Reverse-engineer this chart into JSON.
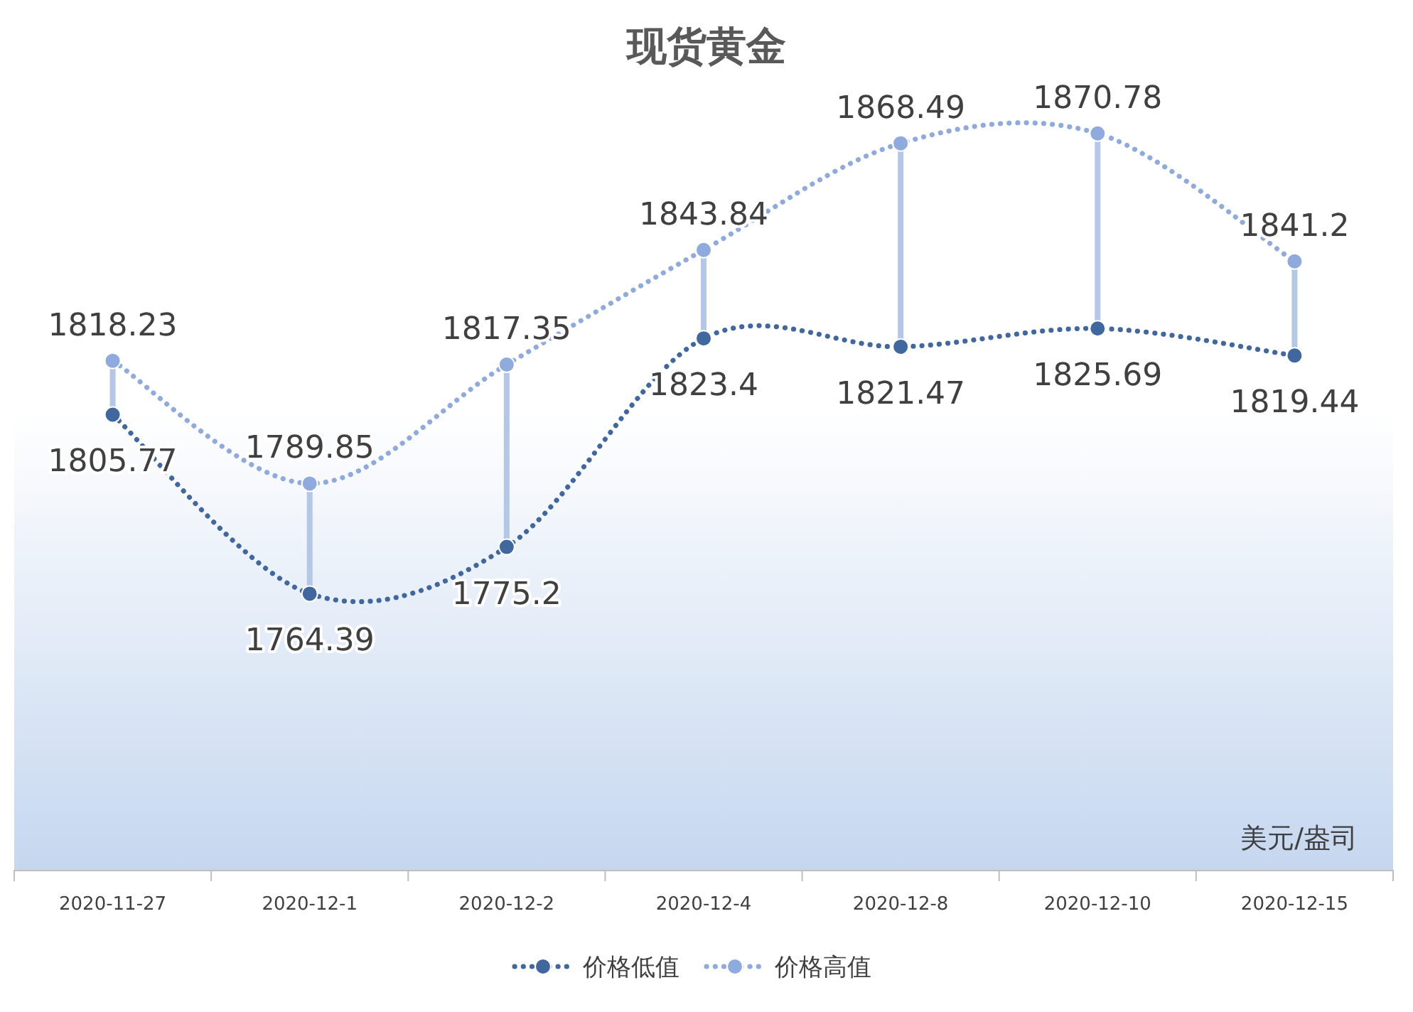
{
  "chart_data": {
    "type": "line",
    "title": "现货黄金",
    "categories": [
      "2020-11-27",
      "2020-12-1",
      "2020-12-2",
      "2020-12-4",
      "2020-12-8",
      "2020-12-10",
      "2020-12-15"
    ],
    "series": [
      {
        "name": "价格低值",
        "color": "#41679f",
        "values": [
          1805.77,
          1764.39,
          1775.2,
          1823.4,
          1821.47,
          1825.69,
          1819.44
        ]
      },
      {
        "name": "价格高值",
        "color": "#8faadc",
        "values": [
          1818.23,
          1789.85,
          1817.35,
          1843.84,
          1868.49,
          1870.78,
          1841.2
        ]
      }
    ],
    "data_labels": true,
    "marker": "circle",
    "line_style": "dotted",
    "legend": "bottom",
    "tick_labels": "x",
    "annotations": [
      "美元/盎司"
    ]
  }
}
